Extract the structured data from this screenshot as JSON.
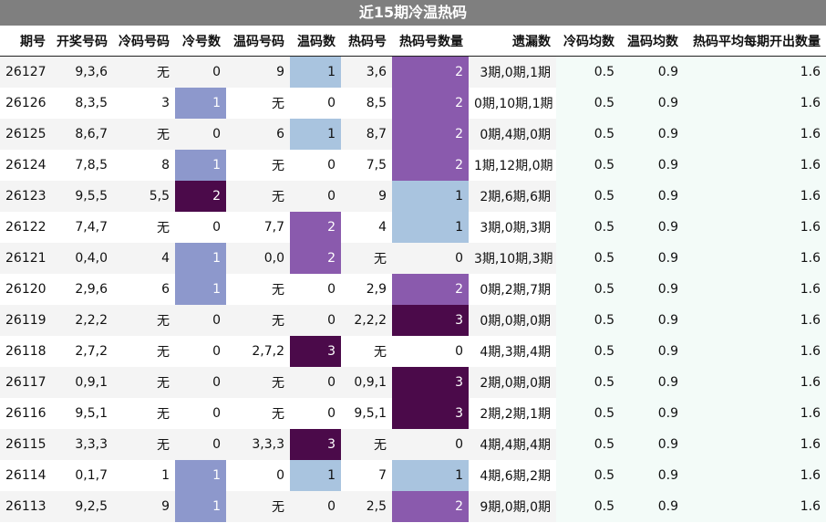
{
  "title": "近15期冷温热码",
  "headers": [
    "期号",
    "开奖号码",
    "冷码号码",
    "冷号数",
    "温码号码",
    "温码数",
    "热码号",
    "热码号数量",
    "遗漏数",
    "冷码均数",
    "温码均数",
    "热码平均每期开出数量"
  ],
  "rows": [
    [
      "26127",
      "9,3,6",
      "无",
      "0",
      "9",
      "1",
      "3,6",
      "2",
      "3期,0期,1期",
      "0.5",
      "0.9",
      "1.6"
    ],
    [
      "26126",
      "8,3,5",
      "3",
      "1",
      "无",
      "0",
      "8,5",
      "2",
      "0期,10期,1期",
      "0.5",
      "0.9",
      "1.6"
    ],
    [
      "26125",
      "8,6,7",
      "无",
      "0",
      "6",
      "1",
      "8,7",
      "2",
      "0期,4期,0期",
      "0.5",
      "0.9",
      "1.6"
    ],
    [
      "26124",
      "7,8,5",
      "8",
      "1",
      "无",
      "0",
      "7,5",
      "2",
      "1期,12期,0期",
      "0.5",
      "0.9",
      "1.6"
    ],
    [
      "26123",
      "9,5,5",
      "5,5",
      "2",
      "无",
      "0",
      "9",
      "1",
      "2期,6期,6期",
      "0.5",
      "0.9",
      "1.6"
    ],
    [
      "26122",
      "7,4,7",
      "无",
      "0",
      "7,7",
      "2",
      "4",
      "1",
      "3期,0期,3期",
      "0.5",
      "0.9",
      "1.6"
    ],
    [
      "26121",
      "0,4,0",
      "4",
      "1",
      "0,0",
      "2",
      "无",
      "0",
      "3期,10期,3期",
      "0.5",
      "0.9",
      "1.6"
    ],
    [
      "26120",
      "2,9,6",
      "6",
      "1",
      "无",
      "0",
      "2,9",
      "2",
      "0期,2期,7期",
      "0.5",
      "0.9",
      "1.6"
    ],
    [
      "26119",
      "2,2,2",
      "无",
      "0",
      "无",
      "0",
      "2,2,2",
      "3",
      "0期,0期,0期",
      "0.5",
      "0.9",
      "1.6"
    ],
    [
      "26118",
      "2,7,2",
      "无",
      "0",
      "2,7,2",
      "3",
      "无",
      "0",
      "4期,3期,4期",
      "0.5",
      "0.9",
      "1.6"
    ],
    [
      "26117",
      "0,9,1",
      "无",
      "0",
      "无",
      "0",
      "0,9,1",
      "3",
      "2期,0期,0期",
      "0.5",
      "0.9",
      "1.6"
    ],
    [
      "26116",
      "9,5,1",
      "无",
      "0",
      "无",
      "0",
      "9,5,1",
      "3",
      "2期,2期,1期",
      "0.5",
      "0.9",
      "1.6"
    ],
    [
      "26115",
      "3,3,3",
      "无",
      "0",
      "3,3,3",
      "3",
      "无",
      "0",
      "4期,4期,4期",
      "0.5",
      "0.9",
      "1.6"
    ],
    [
      "26114",
      "0,1,7",
      "1",
      "1",
      "0",
      "1",
      "7",
      "1",
      "4期,6期,2期",
      "0.5",
      "0.9",
      "1.6"
    ],
    [
      "26113",
      "9,2,5",
      "9",
      "1",
      "无",
      "0",
      "2,5",
      "2",
      "9期,0期,0期",
      "0.5",
      "0.9",
      "1.6"
    ]
  ],
  "colors": {
    "cold_count": {
      "0": "",
      "1": "#8d98cc",
      "2": "#4b0a4a"
    },
    "warm_count": {
      "0": "",
      "1": "#a9c4df",
      "2": "#8a5aad",
      "3": "#4b0a4a"
    },
    "hot_count": {
      "0": "",
      "1": "#a9c4df",
      "2": "#8a5aad",
      "3": "#4b0a4a"
    }
  }
}
